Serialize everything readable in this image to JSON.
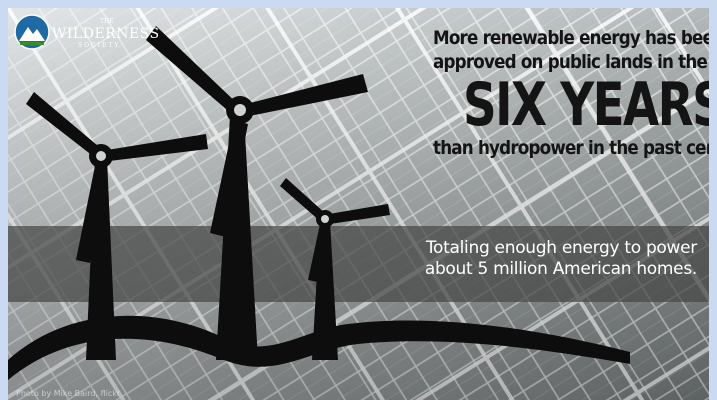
{
  "logo": {
    "name": "WILDERNESS",
    "prefix": "THE",
    "suffix": "SOCIETY"
  },
  "headline": {
    "line1": "More renewable energy has been",
    "line2": "approved on public lands in the past",
    "highlight": "SIX YEARS",
    "line3": "than hydropower in the past century."
  },
  "subline": {
    "line1": "Totaling enough energy to power",
    "line2": "about 5 million American homes."
  },
  "credit": "Photo by Mike Baird, flickr",
  "colors": {
    "background": "#c9daf2",
    "headline_text": "#141414",
    "band": "#464646",
    "turbine": "#0d0d0d",
    "logo_blue": "#1f6aa5",
    "logo_green": "#3c8a2e"
  }
}
